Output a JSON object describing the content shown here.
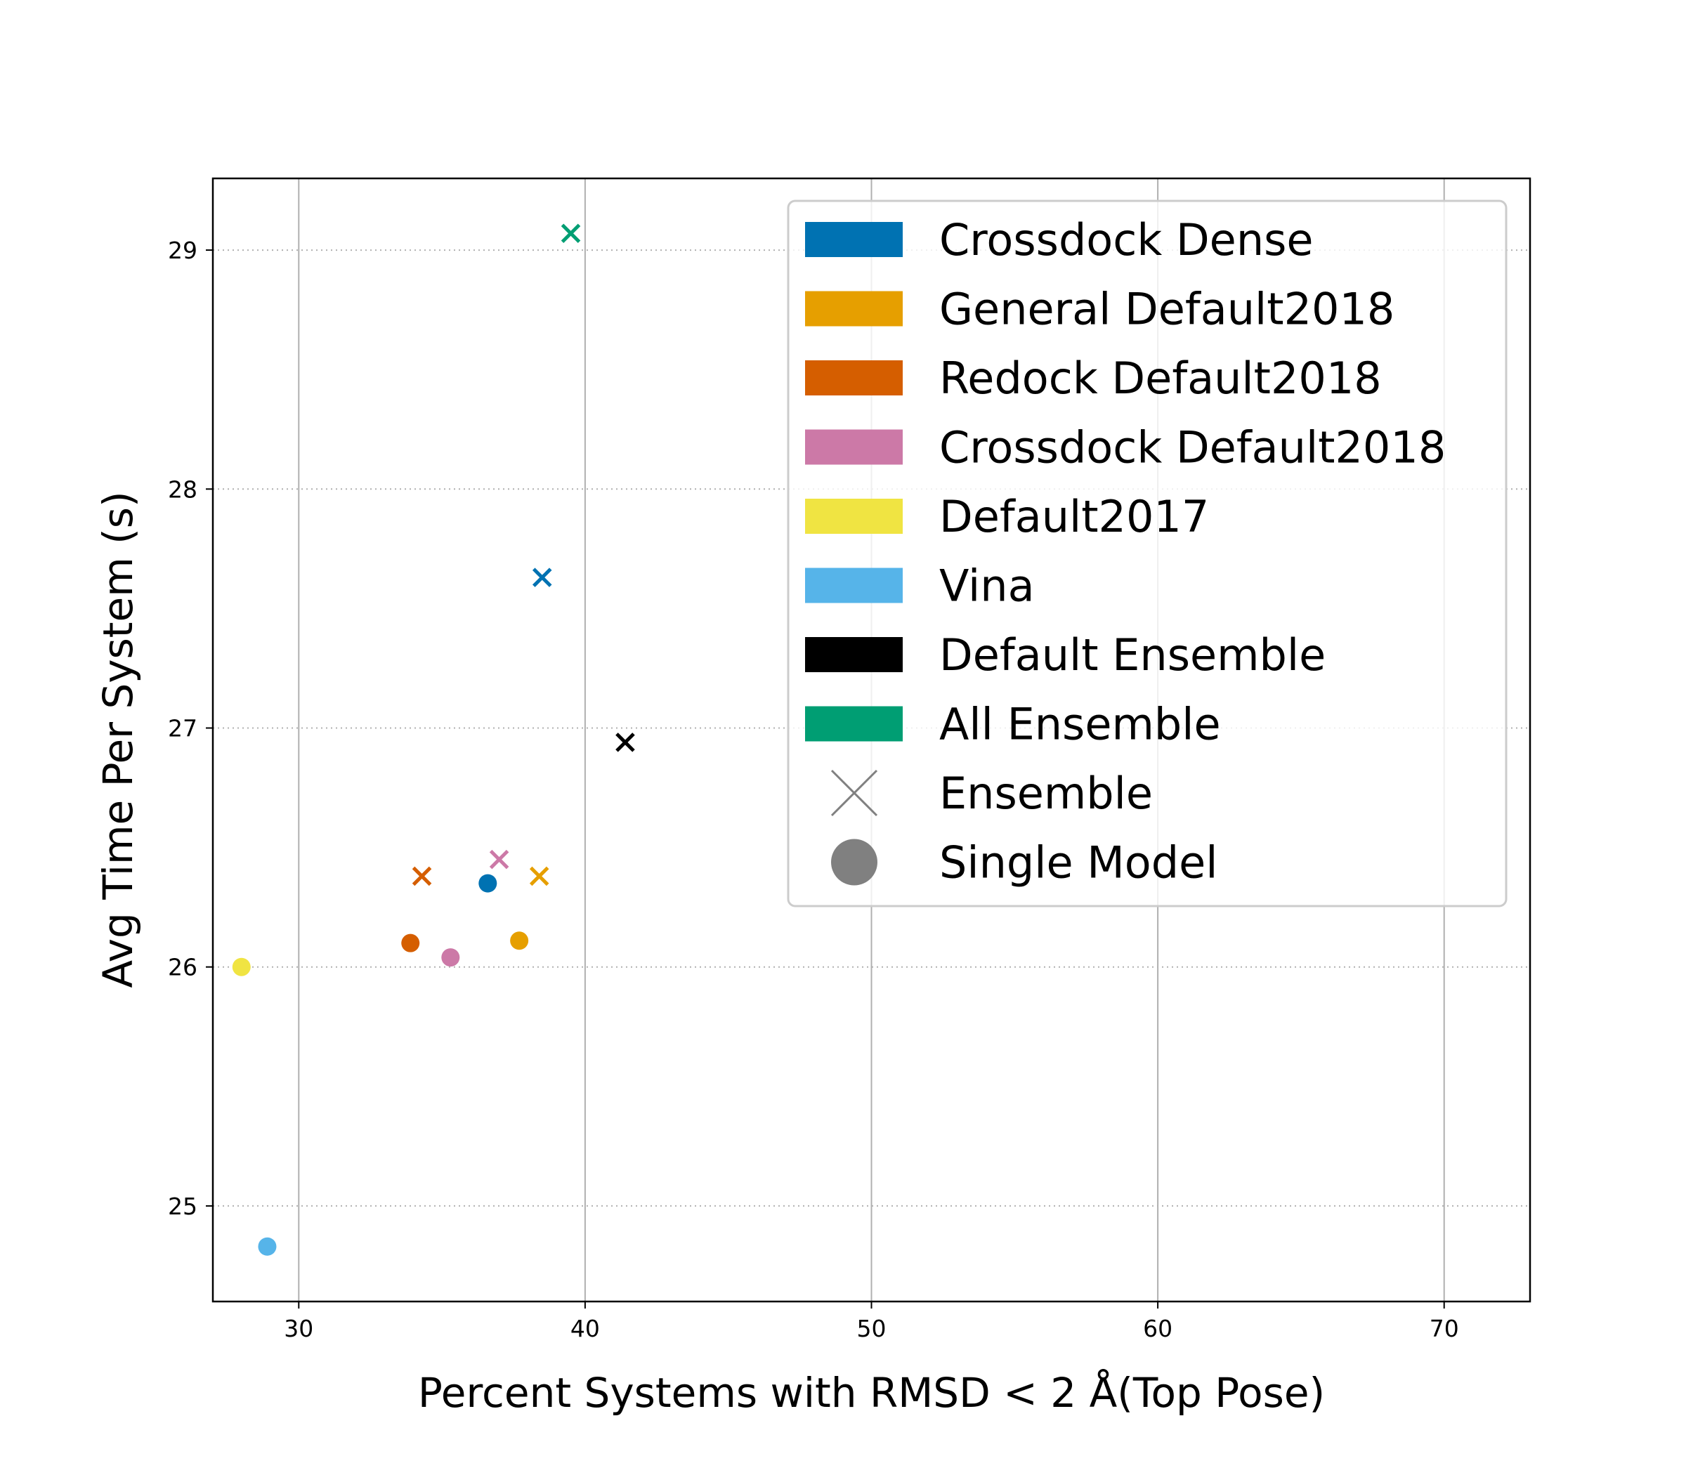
{
  "chart_data": {
    "type": "scatter",
    "xlabel": "Percent Systems with RMSD < 2 Å(Top Pose)",
    "ylabel": "Avg Time Per System (s)",
    "xlim": [
      27,
      73
    ],
    "ylim": [
      24.6,
      29.3
    ],
    "xticks": [
      30,
      40,
      50,
      60,
      70
    ],
    "yticks": [
      25,
      26,
      27,
      28,
      29
    ],
    "grid": "on (x solid, y dotted)",
    "legend_position": "upper right",
    "series": [
      {
        "name": "Crossdock Dense",
        "color": "#0072b2",
        "points": [
          {
            "x": 38.5,
            "y": 27.63,
            "marker": "x"
          },
          {
            "x": 36.6,
            "y": 26.35,
            "marker": "o"
          }
        ]
      },
      {
        "name": "General Default2018",
        "color": "#e69f00",
        "points": [
          {
            "x": 38.4,
            "y": 26.38,
            "marker": "x"
          },
          {
            "x": 37.7,
            "y": 26.11,
            "marker": "o"
          }
        ]
      },
      {
        "name": "Redock Default2018",
        "color": "#d55e00",
        "points": [
          {
            "x": 34.3,
            "y": 26.38,
            "marker": "x"
          },
          {
            "x": 33.9,
            "y": 26.1,
            "marker": "o"
          }
        ]
      },
      {
        "name": "Crossdock Default2018",
        "color": "#cc79a7",
        "points": [
          {
            "x": 37.0,
            "y": 26.45,
            "marker": "x"
          },
          {
            "x": 35.3,
            "y": 26.04,
            "marker": "o"
          }
        ]
      },
      {
        "name": "Default2017",
        "color": "#f0e442",
        "points": [
          {
            "x": 28.0,
            "y": 26.0,
            "marker": "o"
          }
        ]
      },
      {
        "name": "Vina",
        "color": "#56b4e9",
        "points": [
          {
            "x": 28.9,
            "y": 24.83,
            "marker": "o"
          }
        ]
      },
      {
        "name": "Default Ensemble",
        "color": "#000000",
        "points": [
          {
            "x": 41.4,
            "y": 26.94,
            "marker": "x"
          }
        ]
      },
      {
        "name": "All Ensemble",
        "color": "#009e73",
        "points": [
          {
            "x": 39.5,
            "y": 29.07,
            "marker": "x"
          }
        ]
      }
    ],
    "marker_legend": [
      {
        "name": "Ensemble",
        "marker": "x",
        "color": "#808080"
      },
      {
        "name": "Single Model",
        "marker": "o",
        "color": "#808080"
      }
    ]
  }
}
